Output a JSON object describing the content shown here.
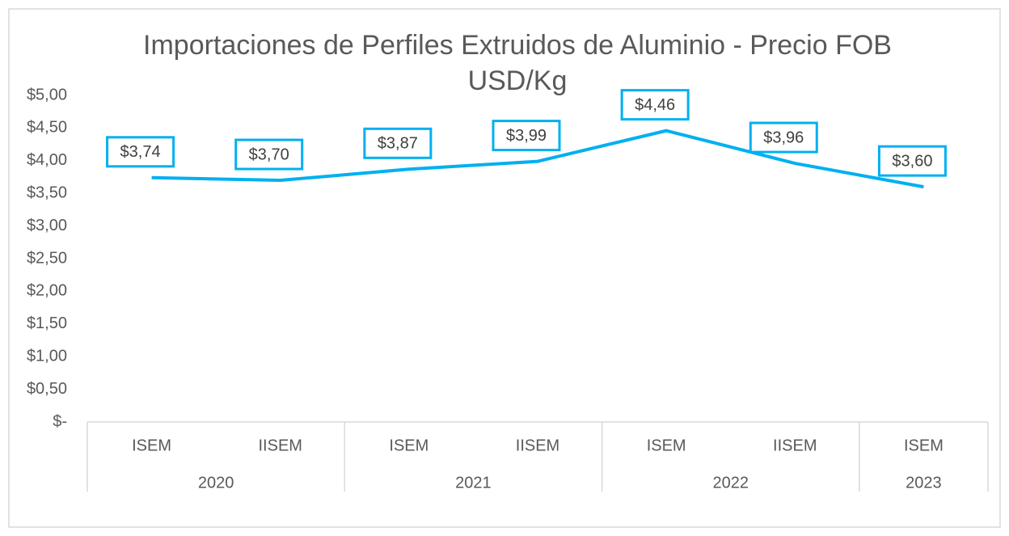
{
  "chart_data": {
    "type": "line",
    "title": "Importaciones de Perfiles Extruidos de Aluminio - Precio FOB USD/Kg",
    "categories": [
      "ISEM",
      "IISEM",
      "ISEM",
      "IISEM",
      "ISEM",
      "IISEM",
      "ISEM"
    ],
    "x_groups": [
      {
        "label": "2020",
        "count": 2
      },
      {
        "label": "2021",
        "count": 2
      },
      {
        "label": "2022",
        "count": 2
      },
      {
        "label": "2023",
        "count": 1
      }
    ],
    "values": [
      3.74,
      3.7,
      3.87,
      3.99,
      4.46,
      3.96,
      3.6
    ],
    "value_labels": [
      "$3,74",
      "$3,70",
      "$3,87",
      "$3,99",
      "$4,46",
      "$3,96",
      "$3,60"
    ],
    "color": "#00b0f0",
    "ylim": [
      0,
      5
    ],
    "yticks": [
      {
        "value": 0,
        "label": "$-"
      },
      {
        "value": 0.5,
        "label": "$0,50"
      },
      {
        "value": 1,
        "label": "$1,00"
      },
      {
        "value": 1.5,
        "label": "$1,50"
      },
      {
        "value": 2,
        "label": "$2,00"
      },
      {
        "value": 2.5,
        "label": "$2,50"
      },
      {
        "value": 3,
        "label": "$3,00"
      },
      {
        "value": 3.5,
        "label": "$3,50"
      },
      {
        "value": 4,
        "label": "$4,00"
      },
      {
        "value": 4.5,
        "label": "$4,50"
      },
      {
        "value": 5,
        "label": "$5,00"
      }
    ],
    "grid": false
  }
}
